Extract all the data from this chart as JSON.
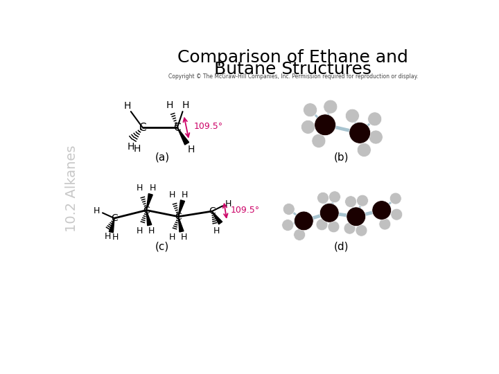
{
  "title_line1": "Comparison of Ethane and",
  "title_line2": "Butane Structures",
  "title_fontsize": 18,
  "title_color": "#000000",
  "copyright_text": "Copyright © The McGraw-Hill Companies, Inc. Permission required for reproduction or display.",
  "copyright_fontsize": 5.5,
  "side_label": "10.2 Alkanes",
  "side_label_fontsize": 14,
  "side_label_color": "#b0b0b0",
  "label_a": "(a)",
  "label_b": "(b)",
  "label_c": "(c)",
  "label_d": "(d)",
  "label_fontsize": 11,
  "angle_text": "109.5°",
  "angle_color": "#cc0066",
  "bg_color": "#ffffff",
  "bond_color": "#000000",
  "carbon_color": "#1a0000",
  "hydrogen_color": "#c0c0c0",
  "stick_color": "#a8c4d0"
}
